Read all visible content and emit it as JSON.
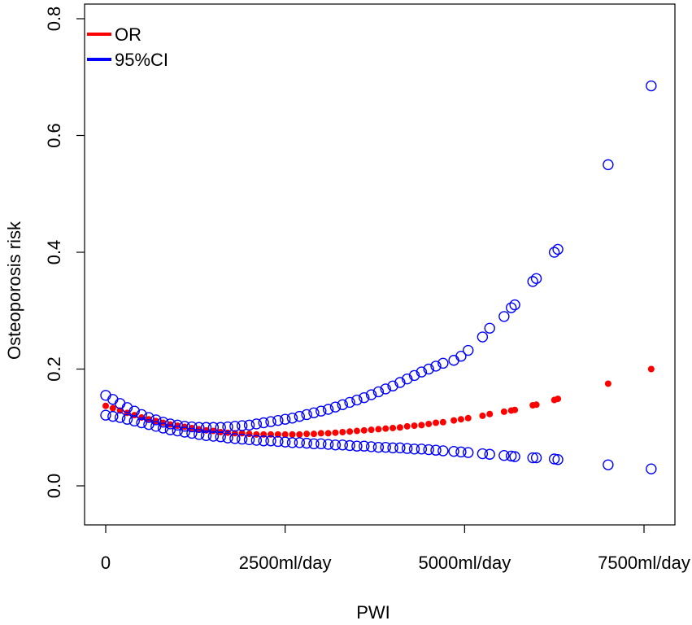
{
  "chart_data": {
    "type": "scatter",
    "title": "",
    "xlabel": "PWI",
    "ylabel": "Osteoporosis risk",
    "xlim": [
      0,
      7600
    ],
    "ylim": [
      0,
      0.8
    ],
    "x_ticks": [
      {
        "value": 0,
        "label": "0"
      },
      {
        "value": 2500,
        "label": "2500ml/day"
      },
      {
        "value": 5000,
        "label": "5000ml/day"
      },
      {
        "value": 7500,
        "label": "7500ml/day"
      }
    ],
    "y_ticks": [
      {
        "value": 0,
        "label": "0.0"
      },
      {
        "value": 0.2,
        "label": "0.2"
      },
      {
        "value": 0.4,
        "label": "0.4"
      },
      {
        "value": 0.6,
        "label": "0.6"
      },
      {
        "value": 0.8,
        "label": "0.8"
      }
    ],
    "legend": {
      "placement": "top-left",
      "entries": [
        {
          "label": "OR",
          "color": "#ff0000"
        },
        {
          "label": "95%CI",
          "color": "#0000ff"
        }
      ]
    },
    "series": [
      {
        "name": "OR",
        "marker": "filled-circle",
        "color": "#ff0000",
        "x": [
          0,
          100,
          200,
          300,
          400,
          500,
          600,
          700,
          800,
          900,
          1000,
          1100,
          1200,
          1300,
          1400,
          1500,
          1600,
          1700,
          1800,
          1900,
          2000,
          2100,
          2200,
          2300,
          2400,
          2500,
          2600,
          2700,
          2800,
          2900,
          3000,
          3100,
          3200,
          3300,
          3400,
          3500,
          3600,
          3700,
          3800,
          3900,
          4000,
          4100,
          4200,
          4300,
          4400,
          4500,
          4600,
          4700,
          4850,
          4950,
          5050,
          5250,
          5350,
          5550,
          5650,
          5700,
          5950,
          6000,
          6250,
          6300,
          7000,
          7600
        ],
        "y": [
          0.137,
          0.133,
          0.129,
          0.125,
          0.121,
          0.117,
          0.114,
          0.111,
          0.108,
          0.105,
          0.103,
          0.101,
          0.099,
          0.097,
          0.095,
          0.094,
          0.092,
          0.091,
          0.09,
          0.09,
          0.089,
          0.088,
          0.088,
          0.088,
          0.088,
          0.088,
          0.088,
          0.088,
          0.089,
          0.089,
          0.09,
          0.09,
          0.091,
          0.092,
          0.093,
          0.094,
          0.095,
          0.096,
          0.097,
          0.098,
          0.099,
          0.1,
          0.102,
          0.103,
          0.104,
          0.106,
          0.108,
          0.109,
          0.112,
          0.114,
          0.116,
          0.12,
          0.123,
          0.127,
          0.129,
          0.13,
          0.138,
          0.139,
          0.147,
          0.149,
          0.175,
          0.2
        ]
      },
      {
        "name": "95%CI upper",
        "marker": "open-circle",
        "color": "#0000ff",
        "x": [
          0,
          100,
          200,
          300,
          400,
          500,
          600,
          700,
          800,
          900,
          1000,
          1100,
          1200,
          1300,
          1400,
          1500,
          1600,
          1700,
          1800,
          1900,
          2000,
          2100,
          2200,
          2300,
          2400,
          2500,
          2600,
          2700,
          2800,
          2900,
          3000,
          3100,
          3200,
          3300,
          3400,
          3500,
          3600,
          3700,
          3800,
          3900,
          4000,
          4100,
          4200,
          4300,
          4400,
          4500,
          4600,
          4700,
          4850,
          4950,
          5050,
          5250,
          5350,
          5550,
          5650,
          5700,
          5950,
          6000,
          6250,
          6300,
          7000,
          7600
        ],
        "y": [
          0.155,
          0.148,
          0.141,
          0.134,
          0.128,
          0.122,
          0.117,
          0.113,
          0.109,
          0.106,
          0.104,
          0.102,
          0.101,
          0.1,
          0.1,
          0.1,
          0.1,
          0.101,
          0.102,
          0.103,
          0.104,
          0.106,
          0.108,
          0.11,
          0.112,
          0.114,
          0.116,
          0.119,
          0.122,
          0.125,
          0.128,
          0.131,
          0.135,
          0.139,
          0.143,
          0.147,
          0.151,
          0.156,
          0.161,
          0.166,
          0.171,
          0.177,
          0.183,
          0.189,
          0.195,
          0.2,
          0.205,
          0.21,
          0.215,
          0.222,
          0.232,
          0.255,
          0.27,
          0.29,
          0.305,
          0.31,
          0.35,
          0.355,
          0.4,
          0.405,
          0.55,
          0.685
        ]
      },
      {
        "name": "95%CI lower",
        "marker": "open-circle",
        "color": "#0000ff",
        "x": [
          0,
          100,
          200,
          300,
          400,
          500,
          600,
          700,
          800,
          900,
          1000,
          1100,
          1200,
          1300,
          1400,
          1500,
          1600,
          1700,
          1800,
          1900,
          2000,
          2100,
          2200,
          2300,
          2400,
          2500,
          2600,
          2700,
          2800,
          2900,
          3000,
          3100,
          3200,
          3300,
          3400,
          3500,
          3600,
          3700,
          3800,
          3900,
          4000,
          4100,
          4200,
          4300,
          4400,
          4500,
          4600,
          4700,
          4850,
          4950,
          5050,
          5250,
          5350,
          5550,
          5650,
          5700,
          5950,
          6000,
          6250,
          6300,
          7000,
          7600
        ],
        "y": [
          0.121,
          0.119,
          0.117,
          0.114,
          0.111,
          0.108,
          0.105,
          0.102,
          0.099,
          0.096,
          0.094,
          0.092,
          0.09,
          0.088,
          0.086,
          0.085,
          0.084,
          0.082,
          0.081,
          0.08,
          0.079,
          0.078,
          0.077,
          0.077,
          0.076,
          0.075,
          0.074,
          0.074,
          0.073,
          0.072,
          0.072,
          0.071,
          0.07,
          0.07,
          0.069,
          0.068,
          0.068,
          0.067,
          0.066,
          0.066,
          0.065,
          0.065,
          0.064,
          0.063,
          0.063,
          0.062,
          0.061,
          0.06,
          0.059,
          0.058,
          0.057,
          0.055,
          0.054,
          0.052,
          0.051,
          0.05,
          0.048,
          0.048,
          0.046,
          0.045,
          0.036,
          0.029
        ]
      }
    ]
  }
}
